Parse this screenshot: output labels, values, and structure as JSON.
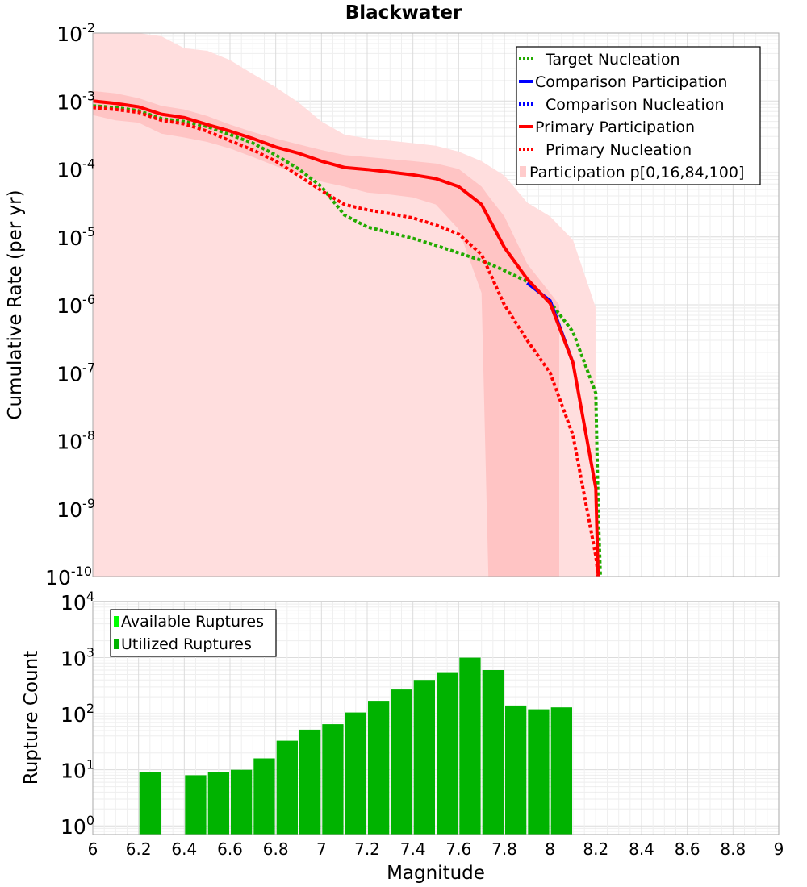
{
  "chart_data": [
    {
      "type": "line",
      "title": "Blackwater",
      "xlabel": "",
      "ylabel": "Cumulative Rate (per yr)",
      "y_scale": "log",
      "ylim": [
        1e-10,
        0.01
      ],
      "xlim": [
        6,
        9
      ],
      "y_tick_labels": [
        {
          "base": "10",
          "exp": "-2"
        },
        {
          "base": "10",
          "exp": "-3"
        },
        {
          "base": "10",
          "exp": "-4"
        },
        {
          "base": "10",
          "exp": "-5"
        },
        {
          "base": "10",
          "exp": "-6"
        },
        {
          "base": "10",
          "exp": "-7"
        },
        {
          "base": "10",
          "exp": "-8"
        },
        {
          "base": "10",
          "exp": "-9"
        },
        {
          "base": "10",
          "exp": "-10"
        }
      ],
      "legend": [
        {
          "label": "Target Nucleation",
          "color": "#22aa00",
          "style": "dotted"
        },
        {
          "label": "Comparison Participation",
          "color": "#0000ff",
          "style": "solid"
        },
        {
          "label": "Comparison Nucleation",
          "color": "#0000ff",
          "style": "dotted"
        },
        {
          "label": "Primary Participation",
          "color": "#ff0000",
          "style": "solid"
        },
        {
          "label": "Primary Nucleation",
          "color": "#ff0000",
          "style": "dotted"
        },
        {
          "label": "Participation p[0,16,84,100]",
          "color": "#ffcccc",
          "style": "band"
        }
      ],
      "series": [
        {
          "name": "Participation p0-p100 range",
          "kind": "band",
          "color": "#ffdede",
          "x": [
            6.0,
            6.1,
            6.2,
            6.3,
            6.4,
            6.5,
            6.6,
            6.7,
            6.8,
            6.9,
            7.0,
            7.1,
            7.2,
            7.3,
            7.4,
            7.5,
            7.6,
            7.7,
            7.8,
            7.9,
            8.0,
            8.1,
            8.2
          ],
          "low": [
            1e-10,
            1e-10,
            1e-10,
            1e-10,
            1e-10,
            1e-10,
            1e-10,
            1e-10,
            1e-10,
            1e-10,
            1e-10,
            1e-10,
            1e-10,
            1e-10,
            1e-10,
            1e-10,
            1e-10,
            1e-10,
            1e-10,
            1e-10,
            1e-10,
            1e-10,
            1e-10
          ],
          "high": [
            0.01,
            0.01,
            0.01,
            0.009,
            0.006,
            0.0055,
            0.004,
            0.0025,
            0.0016,
            0.00095,
            0.0005,
            0.00032,
            0.00028,
            0.00026,
            0.00024,
            0.00022,
            0.00018,
            0.00013,
            8e-05,
            3.2e-05,
            2e-05,
            9e-06,
            9e-07
          ]
        },
        {
          "name": "Participation p16-p84 range",
          "kind": "band",
          "color": "#ffc4c4",
          "x": [
            6.0,
            6.1,
            6.2,
            6.3,
            6.4,
            6.5,
            6.6,
            6.7,
            6.8,
            6.9,
            7.0,
            7.1,
            7.2,
            7.3,
            7.4,
            7.5,
            7.6,
            7.7,
            7.73,
            7.8,
            7.9,
            8.0,
            8.04
          ],
          "low": [
            0.00062,
            0.00052,
            0.00048,
            0.00033,
            0.00029,
            0.00025,
            0.0002,
            0.00015,
            0.00011,
            8.5e-05,
            6.5e-05,
            5.5e-05,
            4.5e-05,
            4.2e-05,
            3.8e-05,
            3e-05,
            1.3e-05,
            1.5e-06,
            1e-10,
            1e-10,
            1e-10,
            1e-10,
            1e-10
          ],
          "high": [
            0.0014,
            0.0013,
            0.0011,
            0.00085,
            0.00075,
            0.0006,
            0.00045,
            0.00035,
            0.00028,
            0.00023,
            0.00019,
            0.00016,
            0.00015,
            0.00014,
            0.00013,
            0.00012,
            0.0001,
            5.5e-05,
            4e-05,
            2e-05,
            4e-06,
            1.5e-06,
            1e-06
          ]
        },
        {
          "name": "Target Nucleation",
          "kind": "line",
          "color": "#22aa00",
          "style": "dotted",
          "x": [
            6.0,
            6.1,
            6.2,
            6.3,
            6.4,
            6.5,
            6.6,
            6.7,
            6.8,
            6.9,
            7.0,
            7.1,
            7.2,
            7.3,
            7.4,
            7.5,
            7.6,
            7.7,
            7.8,
            7.9,
            8.0,
            8.1,
            8.2,
            8.21,
            8.22
          ],
          "y": [
            0.00085,
            0.0008,
            0.00072,
            0.00055,
            0.0005,
            0.00042,
            0.00032,
            0.00024,
            0.00016,
            0.0001,
            5.5e-05,
            2.1e-05,
            1.4e-05,
            1.15e-05,
            9.5e-06,
            7.5e-06,
            5.8e-06,
            4.5e-06,
            3.2e-06,
            2.2e-06,
            1.1e-06,
            4e-07,
            5e-08,
            1e-09,
            1e-10
          ]
        },
        {
          "name": "Comparison Participation",
          "kind": "line",
          "color": "#0000ff",
          "style": "solid",
          "x": [
            7.9,
            8.0,
            8.1
          ],
          "y": [
            2.1e-06,
            1.15e-06,
            1.4e-07
          ]
        },
        {
          "name": "Primary Participation",
          "kind": "line",
          "color": "#ff0000",
          "style": "solid",
          "x": [
            6.0,
            6.1,
            6.2,
            6.3,
            6.4,
            6.5,
            6.6,
            6.7,
            6.8,
            6.9,
            7.0,
            7.1,
            7.2,
            7.3,
            7.4,
            7.5,
            7.6,
            7.7,
            7.8,
            7.9,
            8.0,
            8.1,
            8.2,
            8.21
          ],
          "y": [
            0.001,
            0.00092,
            0.00082,
            0.00064,
            0.00057,
            0.00045,
            0.00036,
            0.00028,
            0.00021,
            0.00017,
            0.00013,
            0.000105,
            9.8e-05,
            9e-05,
            8.2e-05,
            7.2e-05,
            5.5e-05,
            3e-05,
            7e-06,
            2.4e-06,
            1.05e-06,
            1.4e-07,
            2e-09,
            1e-10
          ]
        },
        {
          "name": "Primary Nucleation",
          "kind": "line",
          "color": "#ff0000",
          "style": "dotted",
          "x": [
            6.0,
            6.1,
            6.2,
            6.3,
            6.4,
            6.5,
            6.6,
            6.7,
            6.8,
            6.9,
            7.0,
            7.1,
            7.2,
            7.3,
            7.4,
            7.5,
            7.6,
            7.7,
            7.8,
            7.9,
            8.0,
            8.1,
            8.2,
            8.21
          ],
          "y": [
            0.0008,
            0.00075,
            0.00068,
            0.00052,
            0.00046,
            0.00036,
            0.00026,
            0.00019,
            0.00013,
            8e-05,
            4.8e-05,
            3e-05,
            2.5e-05,
            2.2e-05,
            1.9e-05,
            1.5e-05,
            1.1e-05,
            5.5e-06,
            1e-06,
            3e-07,
            1e-07,
            1.2e-08,
            2e-10,
            1e-10
          ]
        }
      ]
    },
    {
      "type": "bar",
      "title": "",
      "xlabel": "Magnitude",
      "ylabel": "Rupture Count",
      "y_scale": "log",
      "ylim": [
        0.7,
        10000
      ],
      "xlim": [
        6,
        9
      ],
      "x_tick_labels": [
        "6",
        "6.2",
        "6.4",
        "6.6",
        "6.8",
        "7",
        "7.2",
        "7.4",
        "7.6",
        "7.8",
        "8",
        "8.2",
        "8.4",
        "8.6",
        "8.8",
        "9"
      ],
      "y_tick_labels": [
        {
          "base": "10",
          "exp": "4"
        },
        {
          "base": "10",
          "exp": "3"
        },
        {
          "base": "10",
          "exp": "2"
        },
        {
          "base": "10",
          "exp": "1"
        },
        {
          "base": "10",
          "exp": "0"
        }
      ],
      "legend": [
        {
          "label": "Available Ruptures",
          "color": "#00ff00"
        },
        {
          "label": "Utilized Ruptures",
          "color": "#00b300"
        }
      ],
      "series": [
        {
          "name": "Utilized Ruptures",
          "color": "#00b300",
          "x": [
            6.25,
            6.45,
            6.55,
            6.65,
            6.75,
            6.85,
            6.95,
            7.05,
            7.15,
            7.25,
            7.35,
            7.45,
            7.55,
            7.65,
            7.75,
            7.85,
            7.95,
            8.05
          ],
          "values": [
            9,
            8,
            9,
            10,
            16,
            33,
            52,
            65,
            105,
            170,
            270,
            400,
            550,
            1000,
            600,
            140,
            120,
            130
          ]
        }
      ]
    }
  ]
}
